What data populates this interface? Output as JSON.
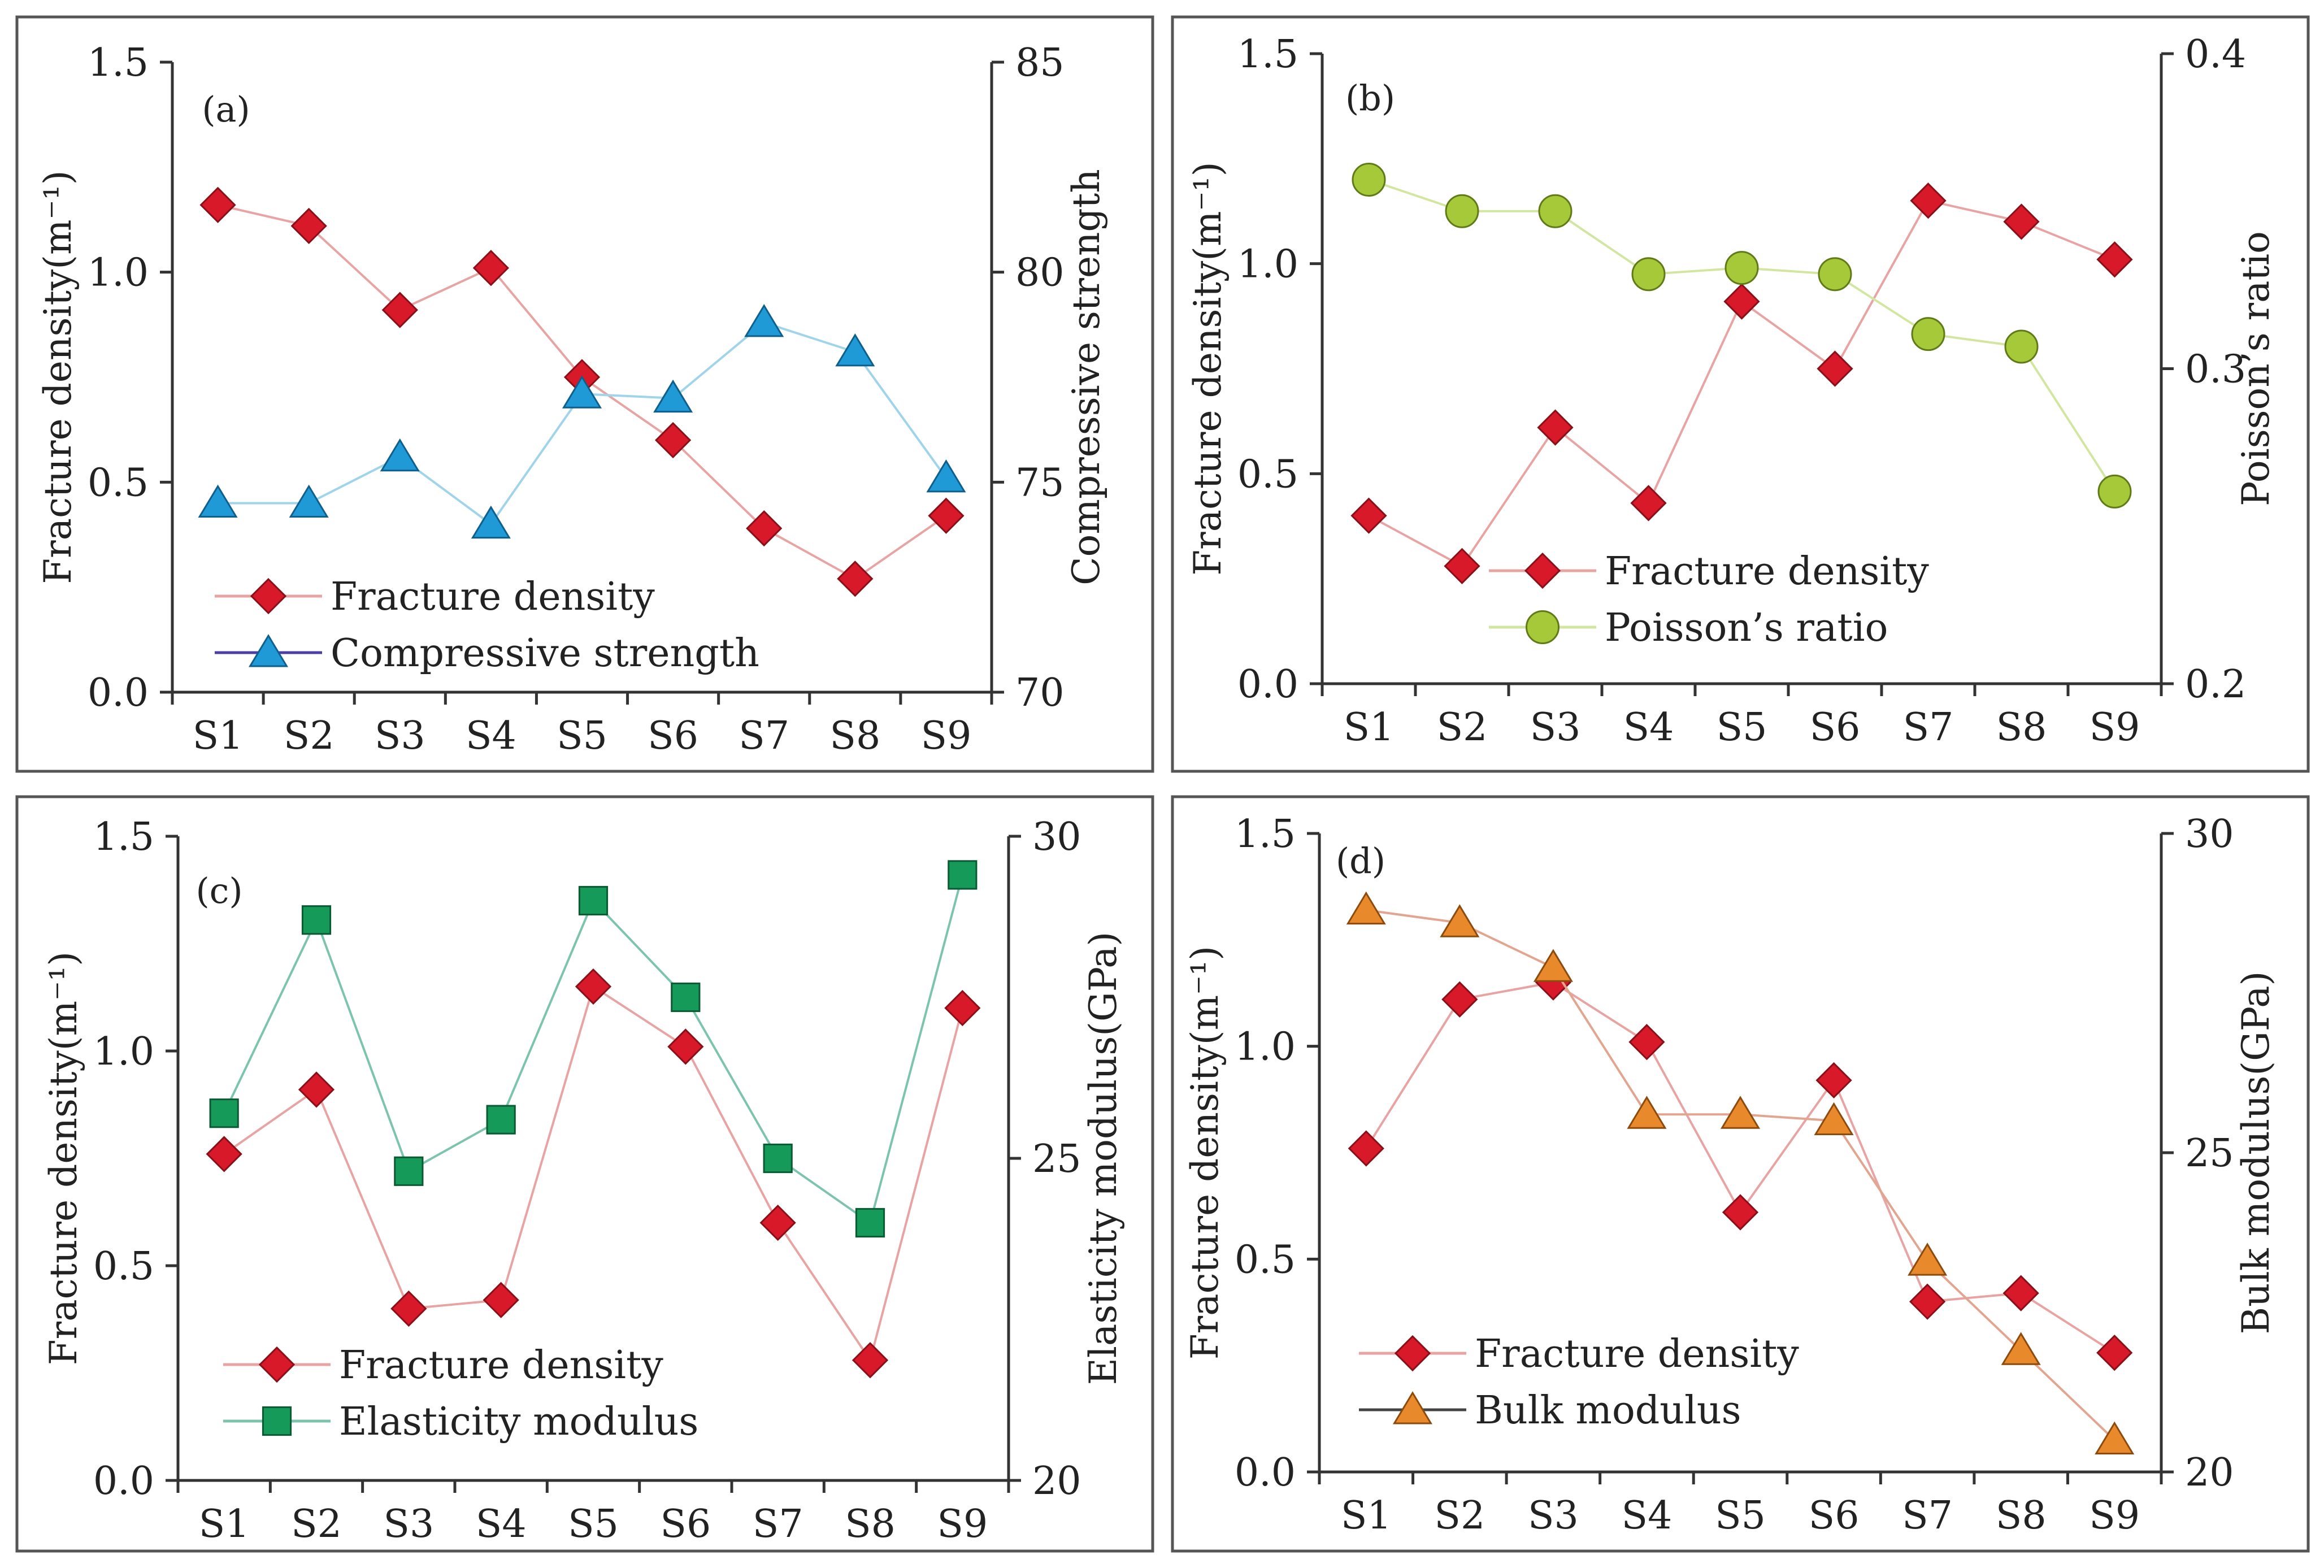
{
  "colors": {
    "fracture_line": "#e8a3a3",
    "fracture_marker": "#d7192a",
    "compressive_line": "#9fd4ea",
    "compressive_marker": "#1f9ad6",
    "compressive_legend_line": "#4b3fa6",
    "poisson_line": "#d3e6a0",
    "poisson_marker": "#a6c93a",
    "elasticity_line": "#7cc4ad",
    "elasticity_marker": "#159a5a",
    "bulk_line": "#e2a58f",
    "bulk_marker": "#e88a2c",
    "bulk_legend_line": "#444444"
  },
  "chart_data": [
    {
      "type": "line",
      "panel_label": "(a)",
      "categories": [
        "S1",
        "S2",
        "S3",
        "S4",
        "S5",
        "S6",
        "S7",
        "S8",
        "S9"
      ],
      "left_axis": {
        "title": "Fracture density(m⁻¹)",
        "ylim": [
          0,
          1.5
        ],
        "ticks": [
          "0.0",
          "0.5",
          "1.0",
          "1.5"
        ]
      },
      "right_axis": {
        "title": "Compressive strength",
        "ylim": [
          70,
          85
        ],
        "ticks": [
          "70",
          "75",
          "80",
          "85"
        ]
      },
      "series": [
        {
          "name": "Fracture density",
          "axis": "left",
          "marker": "diamond",
          "values": [
            1.16,
            1.11,
            0.91,
            1.01,
            0.75,
            0.6,
            0.39,
            0.27,
            0.42
          ]
        },
        {
          "name": "Compressive strength",
          "axis": "right",
          "marker": "triangle",
          "values": [
            74.5,
            74.5,
            75.6,
            74.0,
            77.1,
            77.0,
            78.8,
            78.1,
            75.1
          ]
        }
      ],
      "legend": {
        "position": "bottom-left",
        "entries": [
          "Fracture density",
          "Compressive strength"
        ]
      }
    },
    {
      "type": "line",
      "panel_label": "(b)",
      "categories": [
        "S1",
        "S2",
        "S3",
        "S4",
        "S5",
        "S6",
        "S7",
        "S8",
        "S9"
      ],
      "left_axis": {
        "title": "Fracture density(m⁻¹)",
        "ylim": [
          0,
          1.5
        ],
        "ticks": [
          "0.0",
          "0.5",
          "1.0",
          "1.5"
        ]
      },
      "right_axis": {
        "title": "Poisson’s ratio",
        "ylim": [
          0.2,
          0.4
        ],
        "ticks": [
          "0.2",
          "0.3",
          "0.4"
        ]
      },
      "series": [
        {
          "name": "Fracture density",
          "axis": "left",
          "marker": "diamond",
          "values": [
            0.4,
            0.28,
            0.61,
            0.43,
            0.91,
            0.75,
            1.15,
            1.1,
            1.01
          ]
        },
        {
          "name": "Poisson’s ratio",
          "axis": "right",
          "marker": "circle",
          "values": [
            0.36,
            0.35,
            0.35,
            0.33,
            0.332,
            0.33,
            0.311,
            0.307,
            0.261
          ]
        }
      ],
      "legend": {
        "position": "bottom-center",
        "entries": [
          "Fracture density",
          "Poisson’s ratio"
        ]
      }
    },
    {
      "type": "line",
      "panel_label": "(c)",
      "categories": [
        "S1",
        "S2",
        "S3",
        "S4",
        "S5",
        "S6",
        "S7",
        "S8",
        "S9"
      ],
      "left_axis": {
        "title": "Fracture density(m⁻¹)",
        "ylim": [
          0,
          1.5
        ],
        "ticks": [
          "0.0",
          "0.5",
          "1.0",
          "1.5"
        ]
      },
      "right_axis": {
        "title": "Elasticity modulus(GPa)",
        "ylim": [
          20,
          30
        ],
        "ticks": [
          "20",
          "25",
          "30"
        ]
      },
      "series": [
        {
          "name": "Fracture density",
          "axis": "left",
          "marker": "diamond",
          "values": [
            0.76,
            0.91,
            0.4,
            0.42,
            1.15,
            1.01,
            0.6,
            0.28,
            1.1
          ]
        },
        {
          "name": "Elasticity modulus",
          "axis": "right",
          "marker": "square",
          "values": [
            25.7,
            28.7,
            24.8,
            25.6,
            29.0,
            27.5,
            25.0,
            24.0,
            29.4
          ]
        }
      ],
      "legend": {
        "position": "bottom-left",
        "entries": [
          "Fracture density",
          "Elasticity modulus"
        ]
      }
    },
    {
      "type": "line",
      "panel_label": "(d)",
      "categories": [
        "S1",
        "S2",
        "S3",
        "S4",
        "S5",
        "S6",
        "S7",
        "S8",
        "S9"
      ],
      "left_axis": {
        "title": "Fracture density(m⁻¹)",
        "ylim": [
          0,
          1.5
        ],
        "ticks": [
          "0.0",
          "0.5",
          "1.0",
          "1.5"
        ]
      },
      "right_axis": {
        "title": "Bulk modulus(GPa)",
        "ylim": [
          20,
          30
        ],
        "ticks": [
          "20",
          "25",
          "30"
        ]
      },
      "series": [
        {
          "name": "Fracture density",
          "axis": "left",
          "marker": "diamond",
          "values": [
            0.76,
            1.11,
            1.15,
            1.01,
            0.61,
            0.92,
            0.4,
            0.42,
            0.28
          ]
        },
        {
          "name": "Bulk modulus",
          "axis": "right",
          "marker": "triangle",
          "values": [
            28.8,
            28.6,
            27.9,
            25.6,
            25.6,
            25.5,
            23.3,
            21.9,
            20.5
          ]
        }
      ],
      "legend": {
        "position": "bottom-left",
        "entries": [
          "Fracture density",
          "Bulk modulus"
        ]
      }
    }
  ]
}
